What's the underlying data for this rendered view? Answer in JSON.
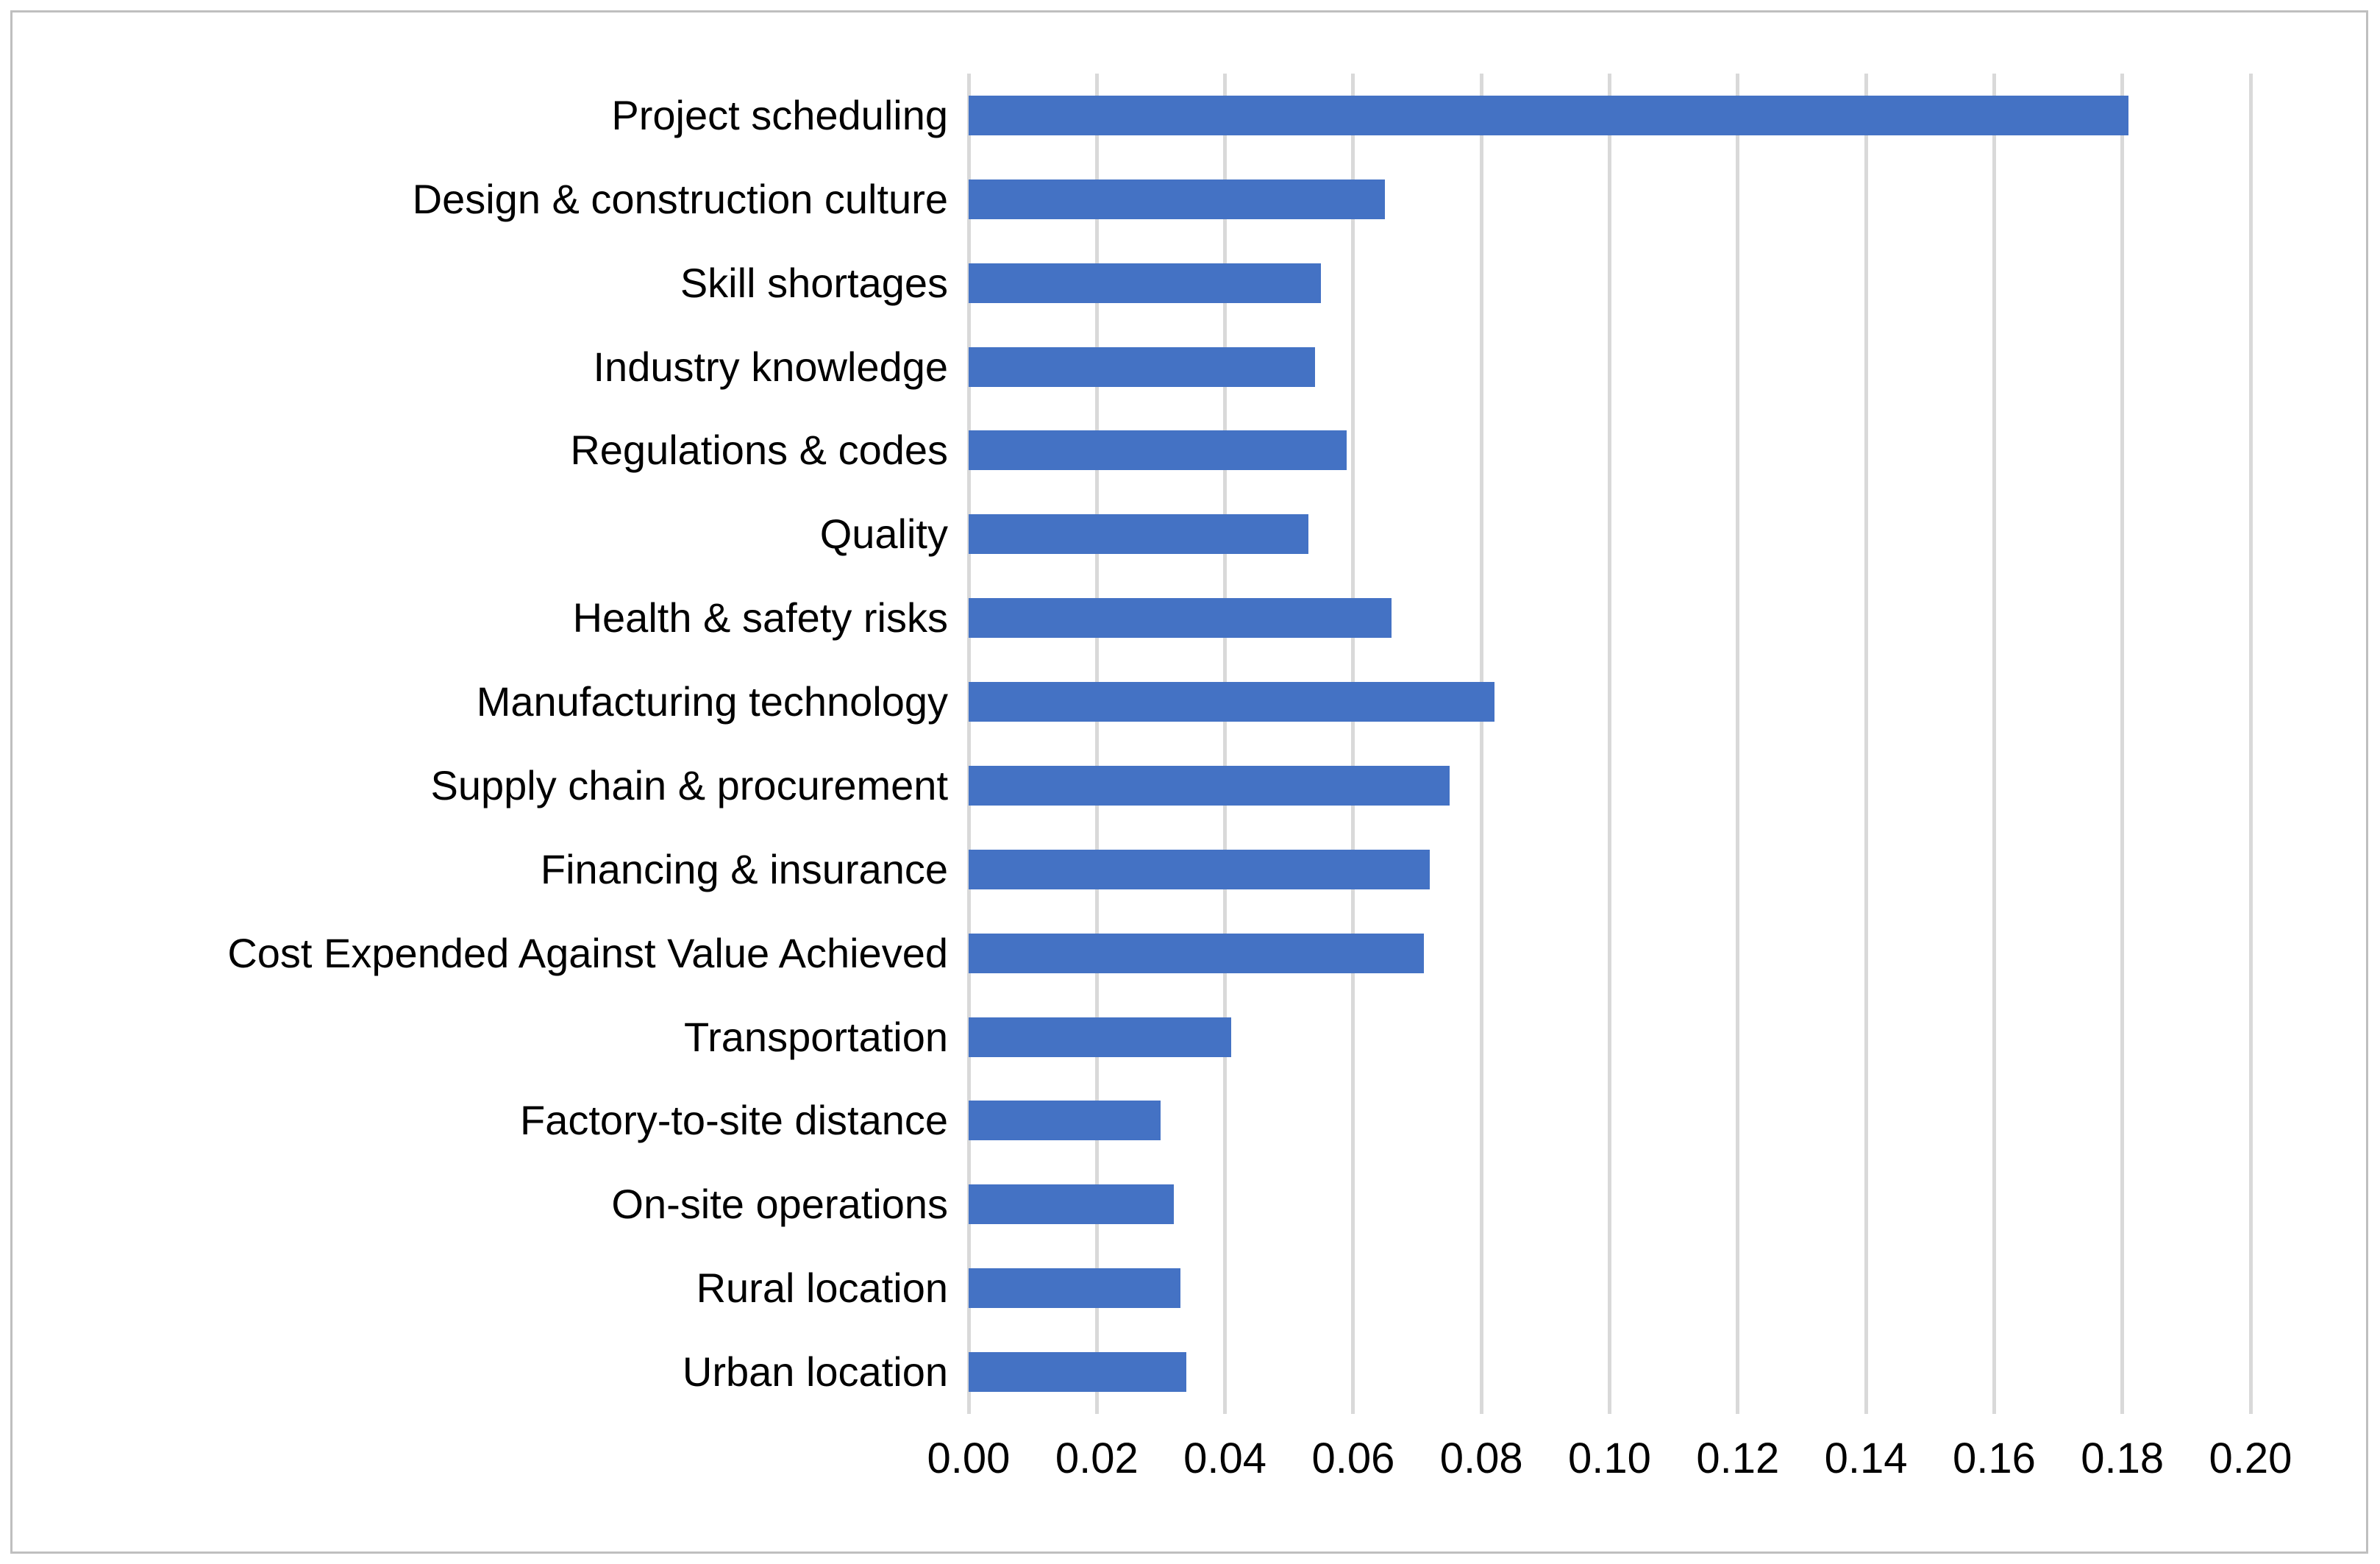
{
  "chart_data": {
    "type": "bar",
    "orientation": "horizontal",
    "title": "",
    "xlabel": "",
    "ylabel": "",
    "categories": [
      "Project scheduling",
      "Design & construction culture",
      "Skill shortages",
      "Industry knowledge",
      "Regulations & codes",
      "Quality",
      "Health & safety risks",
      "Manufacturing technology",
      "Supply chain & procurement",
      "Financing & insurance",
      "Cost Expended Against Value Achieved",
      "Transportation",
      "Factory-to-site distance",
      "On-site operations",
      "Rural location",
      "Urban location"
    ],
    "values": [
      0.181,
      0.065,
      0.055,
      0.054,
      0.059,
      0.053,
      0.066,
      0.082,
      0.075,
      0.072,
      0.071,
      0.041,
      0.03,
      0.032,
      0.033,
      0.034
    ],
    "xlim": [
      0.0,
      0.2
    ],
    "x_tick_step": 0.02,
    "x_ticks": [
      "0.00",
      "0.02",
      "0.04",
      "0.06",
      "0.08",
      "0.10",
      "0.12",
      "0.14",
      "0.16",
      "0.18",
      "0.20"
    ],
    "grid": "vertical",
    "legend": "none",
    "colors": {
      "bar": "#4472C4",
      "gridline": "#D9D9D9",
      "figure_border": "#BFBFBF",
      "text": "#000000",
      "background": "#FFFFFF"
    }
  }
}
